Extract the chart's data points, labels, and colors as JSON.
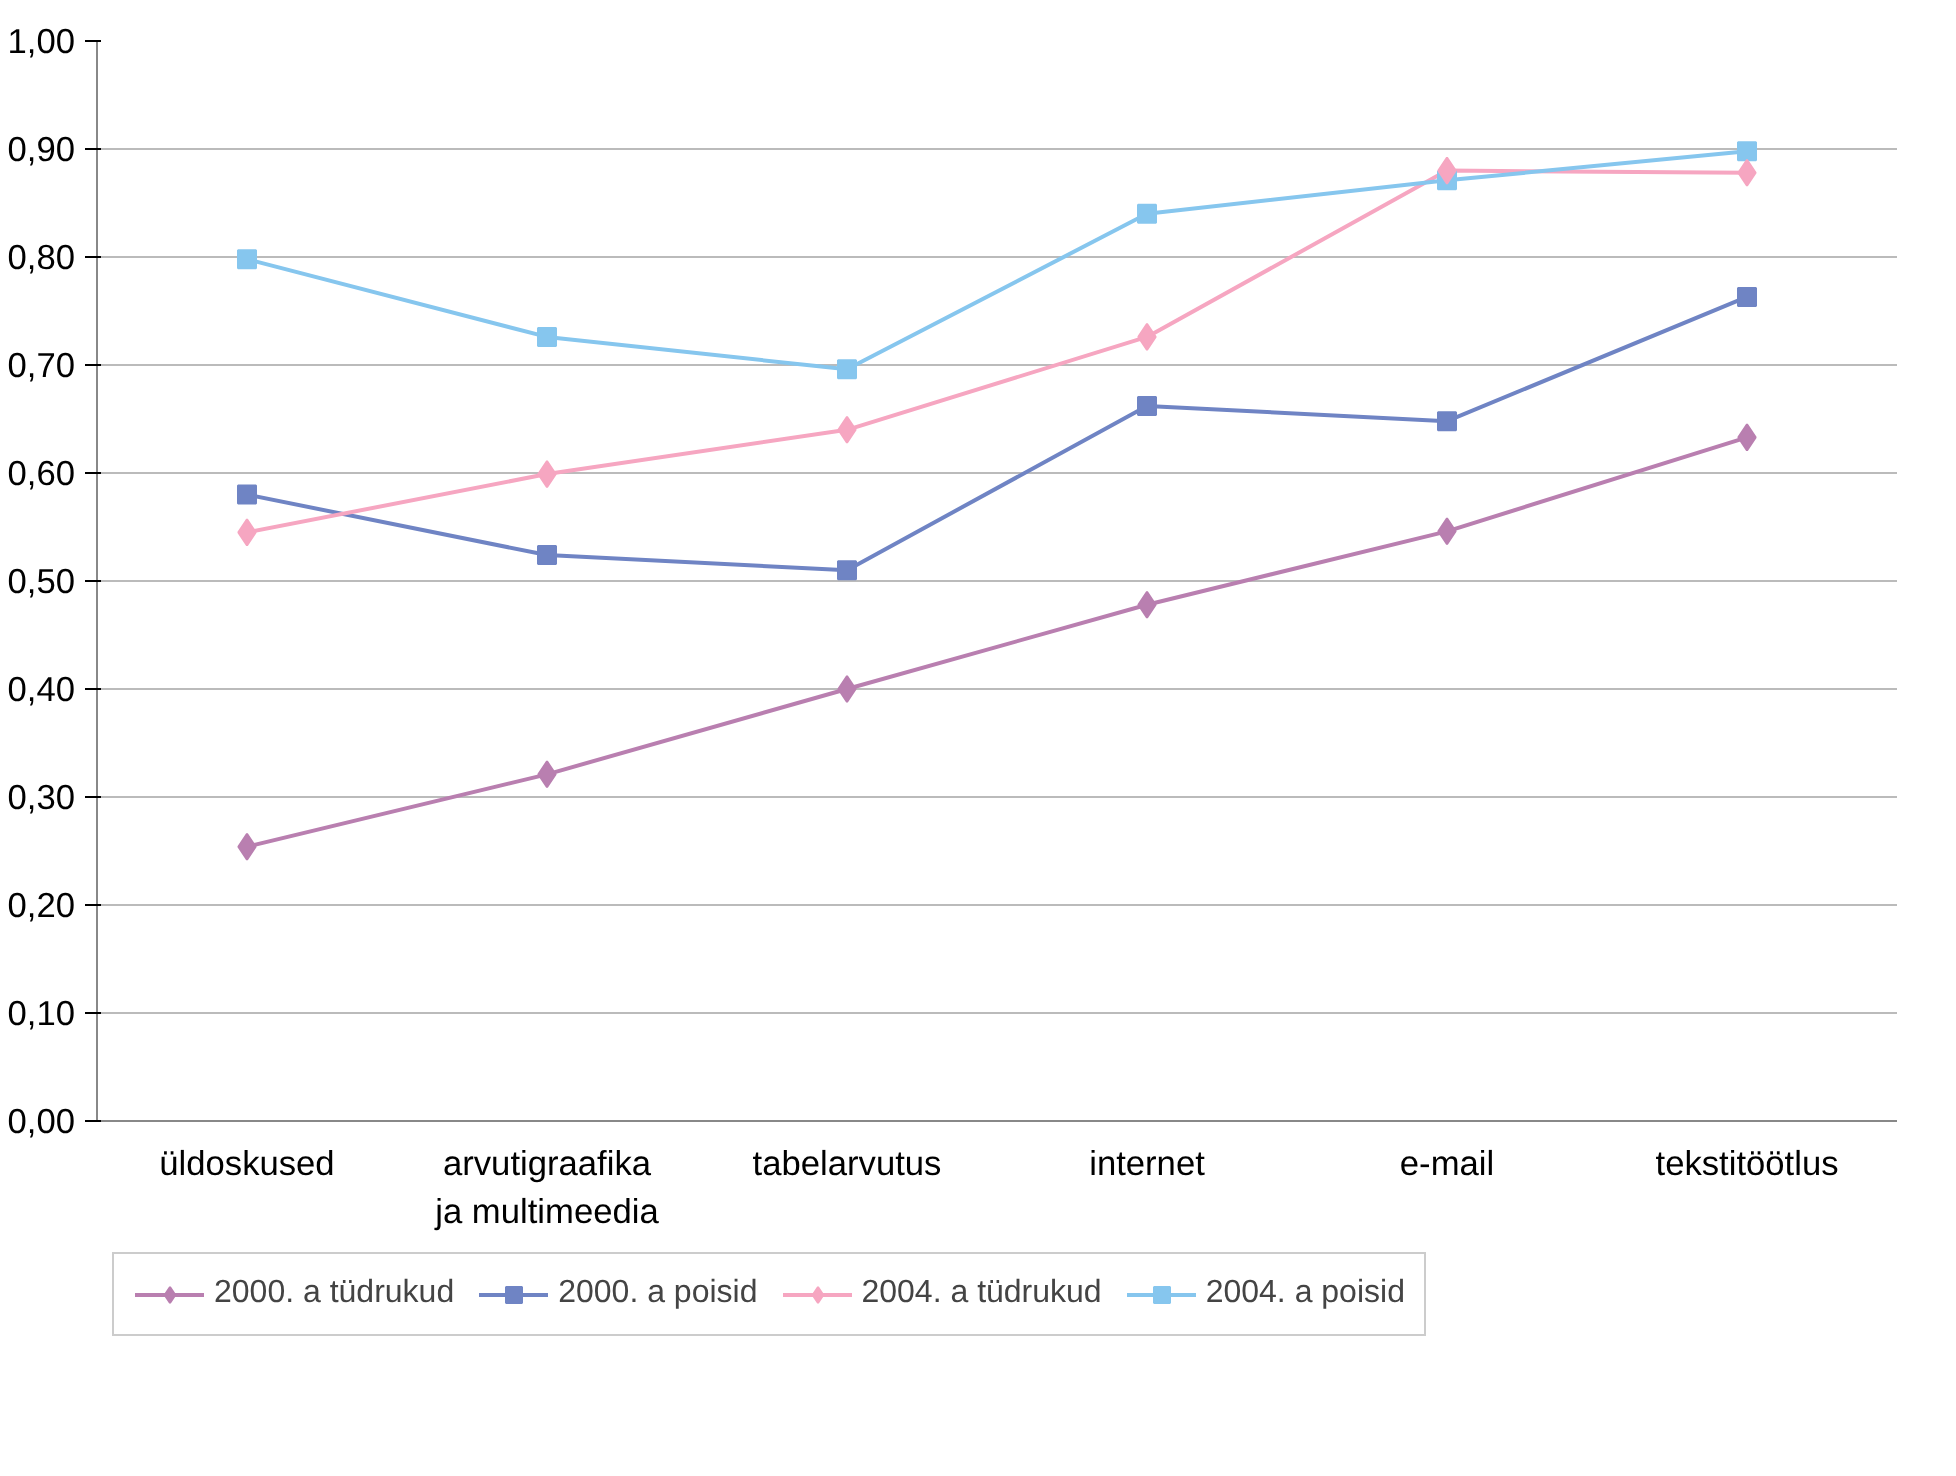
{
  "chart_data": {
    "type": "line",
    "categories": [
      "üldoskused",
      "arvutigraafika\nja multimeedia",
      "tabelarvutus",
      "internet",
      "e-mail",
      "tekstitöötlus"
    ],
    "ylim": [
      0,
      1
    ],
    "yticks": [
      {
        "value": 0,
        "label": "0,00"
      },
      {
        "value": 0.1,
        "label": "0,10"
      },
      {
        "value": 0.2,
        "label": "0,20"
      },
      {
        "value": 0.3,
        "label": "0,30"
      },
      {
        "value": 0.4,
        "label": "0,40"
      },
      {
        "value": 0.5,
        "label": "0,50"
      },
      {
        "value": 0.6,
        "label": "0,60"
      },
      {
        "value": 0.7,
        "label": "0,70"
      },
      {
        "value": 0.8,
        "label": "0,80"
      },
      {
        "value": 0.9,
        "label": "0,90"
      },
      {
        "value": 1,
        "label": "1,00"
      }
    ],
    "grid": "y",
    "legend": "bottom",
    "series": [
      {
        "name": "2000. a tüdrukud",
        "color": "#b97fb0",
        "marker": "diamond",
        "values": [
          0.254,
          0.321,
          0.4,
          0.478,
          0.546,
          0.633
        ]
      },
      {
        "name": "2000. a poisid",
        "color": "#6f84c4",
        "marker": "square",
        "values": [
          0.58,
          0.524,
          0.51,
          0.662,
          0.648,
          0.763
        ]
      },
      {
        "name": "2004. a tüdrukud",
        "color": "#f6a6c1",
        "marker": "diamond",
        "values": [
          0.545,
          0.599,
          0.64,
          0.726,
          0.88,
          0.878
        ]
      },
      {
        "name": "2004. a poisid",
        "color": "#86c6ee",
        "marker": "square",
        "values": [
          0.798,
          0.726,
          0.696,
          0.84,
          0.871,
          0.898
        ]
      }
    ]
  }
}
